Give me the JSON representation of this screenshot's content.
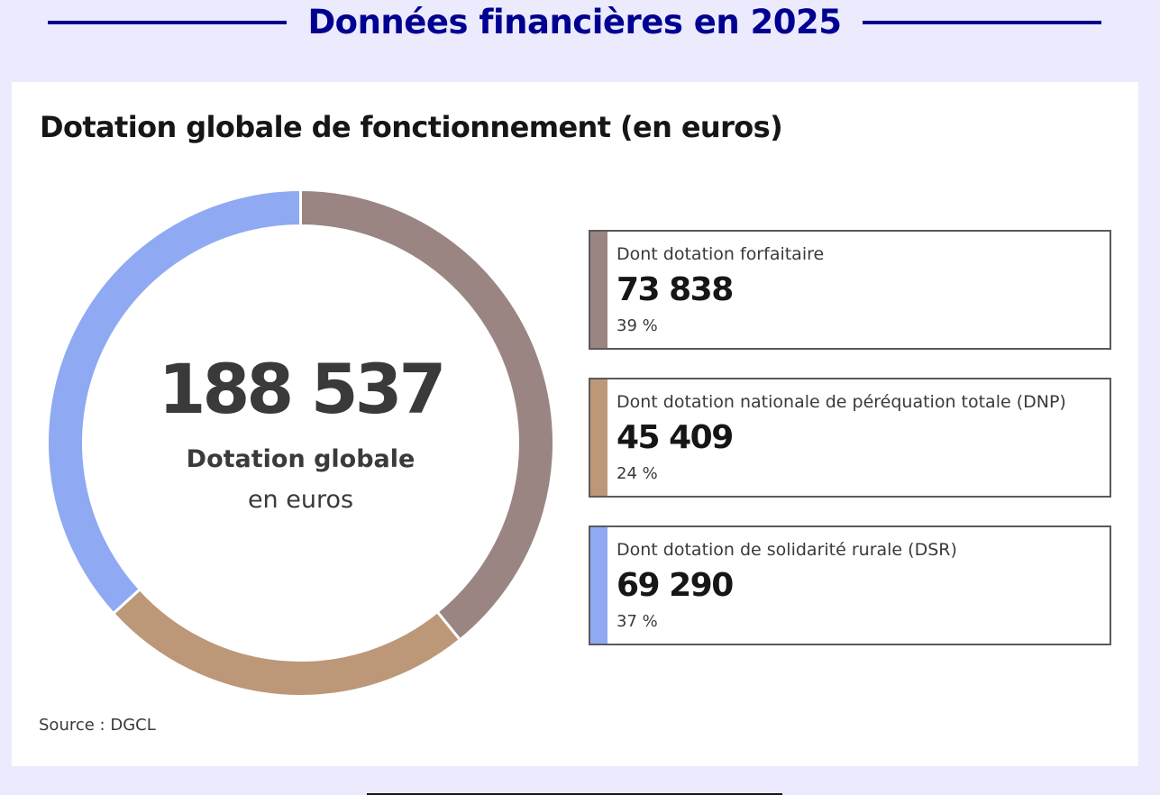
{
  "header": {
    "title": "Données financières en 2025"
  },
  "card": {
    "title": "Dotation globale de fonctionnement (en euros)",
    "source": "Source : DGCL"
  },
  "chart_data": {
    "type": "pie",
    "title": "Dotation globale de fonctionnement (en euros)",
    "total": {
      "value": "188 537",
      "label": "Dotation globale",
      "sublabel": "en euros"
    },
    "slices": [
      {
        "label": "Dont dotation forfaitaire",
        "value": 73838,
        "display": "73 838",
        "percent": "39 %",
        "color": "#9a8582"
      },
      {
        "label": "Dont dotation nationale de péréquation totale (DNP)",
        "value": 45409,
        "display": "45 409",
        "percent": "24 %",
        "color": "#bc9778"
      },
      {
        "label": "Dont dotation de solidarité rurale (DSR)",
        "value": 69290,
        "display": "69 290",
        "percent": "37 %",
        "color": "#8faaf2"
      }
    ]
  }
}
